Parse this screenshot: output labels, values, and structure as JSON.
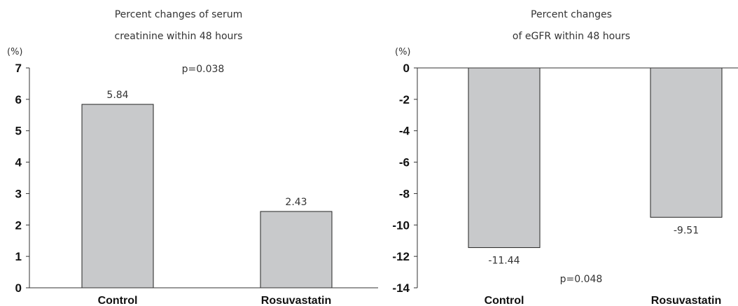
{
  "chart_data": [
    {
      "type": "bar",
      "title_lines": [
        "Percent changes of serum",
        "creatinine within 48 hours"
      ],
      "unit_label": "(%)",
      "categories": [
        "Control",
        "Rosuvastatin"
      ],
      "values": [
        5.84,
        2.43
      ],
      "value_labels": [
        "5.84",
        "2.43"
      ],
      "ylim": [
        0,
        7
      ],
      "yticks": [
        0,
        1,
        2,
        3,
        4,
        5,
        6,
        7
      ],
      "ytick_labels": [
        "0",
        "1",
        "2",
        "3",
        "4",
        "5",
        "6",
        "7"
      ],
      "annotation": "p=0.038",
      "bar_color": "#c8c9cb",
      "grid": false
    },
    {
      "type": "bar",
      "title_lines": [
        "Percent changes",
        "of eGFR within 48 hours"
      ],
      "unit_label": "(%)",
      "categories": [
        "Control",
        "Rosuvastatin"
      ],
      "values": [
        -11.44,
        -9.51
      ],
      "value_labels": [
        "-11.44",
        "-9.51"
      ],
      "ylim": [
        -14,
        0
      ],
      "yticks": [
        0,
        -2,
        -4,
        -6,
        -8,
        -10,
        -12,
        -14
      ],
      "ytick_labels": [
        "0",
        "-2",
        "-4",
        "-6",
        "-8",
        "-10",
        "-12",
        "-14"
      ],
      "annotation": "p=0.048",
      "bar_color": "#c8c9cb",
      "grid": false
    }
  ]
}
